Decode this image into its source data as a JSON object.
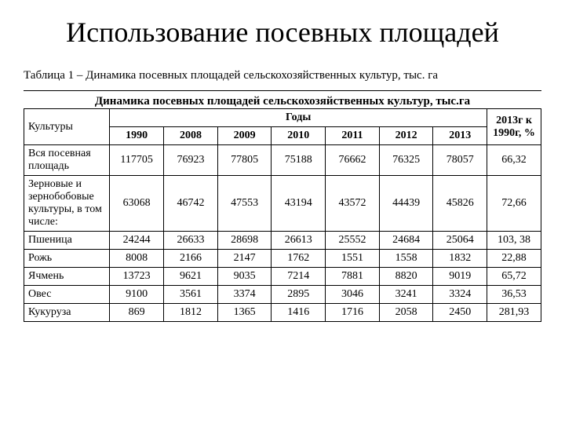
{
  "title": "Использование посевных площадей",
  "caption": "Таблица 1 – Динамика посевных площадей сельскохозяйственных культур, тыс. га",
  "table_title": "Динамика посевных площадей сельскохозяйственных культур, тыс.га",
  "headers": {
    "cultures": "Культуры",
    "years_label": "Годы",
    "years": [
      "1990",
      "2008",
      "2009",
      "2010",
      "2011",
      "2012",
      "2013"
    ],
    "ratio": "2013г к 1990г, %"
  },
  "rows": [
    {
      "label": "Вся посевная площадь",
      "values": [
        "117705",
        "76923",
        "77805",
        "75188",
        "76662",
        "76325",
        "78057"
      ],
      "ratio": "66,32"
    },
    {
      "label": "Зерновые и зернобобовые культуры, в том числе:",
      "values": [
        "63068",
        "46742",
        "47553",
        "43194",
        "43572",
        "44439",
        "45826"
      ],
      "ratio": "72,66"
    },
    {
      "label": "Пшеница",
      "values": [
        "24244",
        "26633",
        "28698",
        "26613",
        "25552",
        "24684",
        "25064"
      ],
      "ratio": "103, 38"
    },
    {
      "label": "Рожь",
      "values": [
        "8008",
        "2166",
        "2147",
        "1762",
        "1551",
        "1558",
        "1832"
      ],
      "ratio": "22,88"
    },
    {
      "label": "Ячмень",
      "values": [
        "13723",
        "9621",
        "9035",
        "7214",
        "7881",
        "8820",
        "9019"
      ],
      "ratio": "65,72"
    },
    {
      "label": "Овес",
      "values": [
        "9100",
        "3561",
        "3374",
        "2895",
        "3046",
        "3241",
        "3324"
      ],
      "ratio": "36,53"
    },
    {
      "label": "Кукуруза",
      "values": [
        "869",
        "1812",
        "1365",
        "1416",
        "1716",
        "2058",
        "2450"
      ],
      "ratio": "281,93"
    }
  ],
  "styles": {
    "background_color": "#ffffff",
    "text_color": "#000000",
    "border_color": "#000000",
    "title_fontsize": 36,
    "caption_fontsize": 15,
    "table_fontsize": 14
  }
}
